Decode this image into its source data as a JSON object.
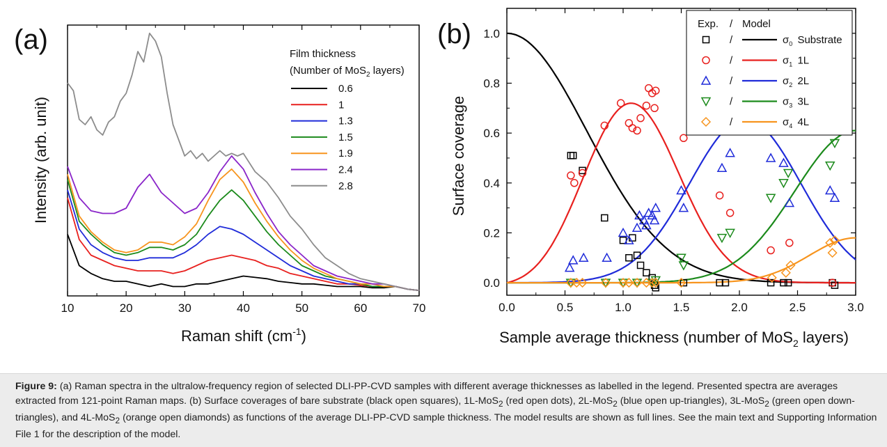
{
  "panels": {
    "a_label": "(a)",
    "b_label": "(b)"
  },
  "caption": {
    "label": "Figure 9:",
    "segments": [
      {
        "t": " (a) Raman spectra in the ultralow-frequency region of selected DLI-PP-CVD samples with different average thicknesses as labelled in the legend. Presented spectra are averages extracted from 121-point Raman maps. (b) Surface coverages of bare substrate (black open squares), 1L-MoS"
      },
      {
        "t": "2",
        "sub": true
      },
      {
        "t": " (red open dots), 2L-MoS"
      },
      {
        "t": "2",
        "sub": true
      },
      {
        "t": " (blue open up-triangles), 3L-MoS"
      },
      {
        "t": "2",
        "sub": true
      },
      {
        "t": " (green open down-triangles), and 4L-MoS"
      },
      {
        "t": "2",
        "sub": true
      },
      {
        "t": " (orange open diamonds) as functions of the average DLI-PP-CVD sample thickness. The model results are shown as full lines. See the main text and Supporting Information File 1 for the description of the model."
      }
    ]
  },
  "chart_data": [
    {
      "type": "line",
      "panel": "(a)",
      "xlabel": "Raman shift (cm",
      "xlabel_sup": "-1",
      "xlabel_tail": ")",
      "ylabel": "Intensity (arb. unit)",
      "xlim": [
        10,
        70
      ],
      "ylim": [
        0,
        1
      ],
      "xticks": [
        10,
        20,
        30,
        40,
        50,
        60,
        70
      ],
      "yticks_labeled": false,
      "grid": false,
      "legend": {
        "title_line1": "Film thickness",
        "title_line2_a": "(Number of MoS",
        "title_line2_sub": "2",
        "title_line2_b": " layers)",
        "placement": "top-right"
      },
      "series": [
        {
          "name": "0.6",
          "color": "#000000",
          "x": [
            10,
            12,
            14,
            16,
            18,
            20,
            22,
            24,
            26,
            28,
            30,
            32,
            34,
            36,
            38,
            40,
            42,
            44,
            46,
            48,
            50,
            52,
            54,
            56,
            58,
            60,
            62,
            64,
            66,
            68,
            70
          ],
          "y": [
            0.22,
            0.1,
            0.07,
            0.05,
            0.04,
            0.04,
            0.03,
            0.02,
            0.03,
            0.02,
            0.02,
            0.03,
            0.03,
            0.04,
            0.05,
            0.06,
            0.055,
            0.05,
            0.04,
            0.035,
            0.03,
            0.03,
            0.025,
            0.02,
            0.02,
            0.02,
            0.015,
            0.015,
            0.02,
            0.01,
            0.005
          ]
        },
        {
          "name": "1",
          "color": "#e8201e",
          "x": [
            10,
            12,
            14,
            16,
            18,
            20,
            22,
            24,
            26,
            28,
            30,
            32,
            34,
            36,
            38,
            40,
            42,
            44,
            46,
            48,
            50,
            52,
            54,
            56,
            58,
            60,
            62,
            64,
            66,
            68,
            70
          ],
          "y": [
            0.36,
            0.2,
            0.14,
            0.12,
            0.1,
            0.09,
            0.08,
            0.08,
            0.08,
            0.07,
            0.08,
            0.1,
            0.12,
            0.13,
            0.14,
            0.13,
            0.12,
            0.1,
            0.09,
            0.07,
            0.06,
            0.05,
            0.04,
            0.03,
            0.03,
            0.025,
            0.02,
            0.02,
            0.02,
            0.01,
            0.005
          ]
        },
        {
          "name": "1.3",
          "color": "#1f2bd9",
          "x": [
            10,
            12,
            14,
            16,
            18,
            20,
            22,
            24,
            26,
            28,
            30,
            32,
            34,
            36,
            38,
            40,
            42,
            44,
            46,
            48,
            50,
            52,
            54,
            56,
            58,
            60,
            62,
            64,
            66,
            68,
            70
          ],
          "y": [
            0.39,
            0.24,
            0.18,
            0.15,
            0.13,
            0.12,
            0.12,
            0.13,
            0.13,
            0.13,
            0.15,
            0.18,
            0.22,
            0.25,
            0.24,
            0.22,
            0.19,
            0.16,
            0.13,
            0.1,
            0.08,
            0.06,
            0.05,
            0.04,
            0.03,
            0.03,
            0.02,
            0.02,
            0.02,
            0.01,
            0.005
          ]
        },
        {
          "name": "1.5",
          "color": "#1b8a1b",
          "x": [
            10,
            12,
            14,
            16,
            18,
            20,
            22,
            24,
            26,
            28,
            30,
            32,
            34,
            36,
            38,
            40,
            42,
            44,
            46,
            48,
            50,
            52,
            54,
            56,
            58,
            60,
            62,
            64,
            66,
            68,
            70
          ],
          "y": [
            0.43,
            0.27,
            0.22,
            0.18,
            0.15,
            0.14,
            0.15,
            0.17,
            0.17,
            0.16,
            0.18,
            0.22,
            0.29,
            0.35,
            0.39,
            0.35,
            0.29,
            0.23,
            0.18,
            0.14,
            0.1,
            0.08,
            0.06,
            0.05,
            0.04,
            0.03,
            0.02,
            0.02,
            0.02,
            0.01,
            0.005
          ]
        },
        {
          "name": "1.9",
          "color": "#f7941d",
          "x": [
            10,
            12,
            14,
            16,
            18,
            20,
            22,
            24,
            26,
            28,
            30,
            32,
            34,
            36,
            38,
            40,
            42,
            44,
            46,
            48,
            50,
            52,
            54,
            56,
            58,
            60,
            62,
            64,
            66,
            68,
            70
          ],
          "y": [
            0.45,
            0.29,
            0.23,
            0.19,
            0.16,
            0.15,
            0.16,
            0.19,
            0.19,
            0.18,
            0.21,
            0.26,
            0.35,
            0.43,
            0.47,
            0.42,
            0.34,
            0.27,
            0.21,
            0.16,
            0.12,
            0.09,
            0.07,
            0.05,
            0.04,
            0.03,
            0.03,
            0.02,
            0.02,
            0.01,
            0.005
          ]
        },
        {
          "name": "2.4",
          "color": "#8a25c9",
          "x": [
            10,
            12,
            14,
            16,
            18,
            20,
            22,
            24,
            26,
            28,
            30,
            32,
            34,
            36,
            38,
            40,
            42,
            44,
            46,
            48,
            50,
            52,
            54,
            56,
            58,
            60,
            62,
            64,
            66,
            68,
            70
          ],
          "y": [
            0.48,
            0.36,
            0.31,
            0.3,
            0.3,
            0.32,
            0.4,
            0.45,
            0.38,
            0.34,
            0.3,
            0.32,
            0.38,
            0.46,
            0.52,
            0.47,
            0.38,
            0.3,
            0.23,
            0.18,
            0.14,
            0.1,
            0.08,
            0.06,
            0.05,
            0.04,
            0.03,
            0.03,
            0.02,
            0.01,
            0.005
          ]
        },
        {
          "name": "2.8",
          "color": "#8c8c8c",
          "x": [
            10,
            11,
            12,
            13,
            14,
            15,
            16,
            17,
            18,
            19,
            20,
            21,
            22,
            23,
            24,
            25,
            26,
            27,
            28,
            29,
            30,
            31,
            32,
            33,
            34,
            35,
            36,
            37,
            38,
            39,
            40,
            42,
            44,
            46,
            48,
            50,
            52,
            54,
            56,
            58,
            60,
            62,
            64,
            66,
            68,
            70
          ],
          "y": [
            0.8,
            0.77,
            0.66,
            0.64,
            0.67,
            0.62,
            0.6,
            0.65,
            0.67,
            0.73,
            0.76,
            0.83,
            0.92,
            0.88,
            0.99,
            0.96,
            0.9,
            0.76,
            0.64,
            0.58,
            0.52,
            0.54,
            0.51,
            0.53,
            0.5,
            0.52,
            0.54,
            0.52,
            0.53,
            0.52,
            0.53,
            0.46,
            0.42,
            0.36,
            0.29,
            0.24,
            0.18,
            0.13,
            0.1,
            0.07,
            0.05,
            0.04,
            0.03,
            0.02,
            0.01,
            0.005
          ]
        }
      ]
    },
    {
      "type": "scatter",
      "panel": "(b)",
      "xlabel": "Sample average thickness (number of MoS",
      "xlabel_sub": "2",
      "xlabel_tail": " layers)",
      "ylabel": "Surface coverage",
      "xlim": [
        0,
        3
      ],
      "ylim": [
        -0.05,
        1.1
      ],
      "xticks": [
        "0.0",
        "0.5",
        "1.0",
        "1.5",
        "2.0",
        "2.5",
        "3.0"
      ],
      "yticks": [
        "0.0",
        "0.2",
        "0.4",
        "0.6",
        "0.8",
        "1.0"
      ],
      "grid": false,
      "legend": {
        "header_exp": "Exp.",
        "header_sep": "/",
        "header_model": "Model",
        "placement": "top-right"
      },
      "series": [
        {
          "key": "sigma0",
          "sigma": "σ",
          "sub": "0",
          "label": "Substrate",
          "color": "#000000",
          "marker": "square",
          "model": "substrate",
          "x": [
            0.55,
            0.57,
            0.65,
            0.84,
            1.0,
            1.05,
            1.08,
            1.12,
            1.15,
            1.2,
            1.25,
            1.27,
            1.28,
            1.52,
            1.83,
            1.88,
            2.27,
            2.38,
            2.42,
            2.8,
            2.82
          ],
          "y": [
            0.51,
            0.51,
            0.45,
            0.26,
            0.17,
            0.1,
            0.18,
            0.11,
            0.07,
            0.04,
            0.02,
            -0.01,
            -0.02,
            0.0,
            0.0,
            0.0,
            0.0,
            0.0,
            0.0,
            0.0,
            -0.01
          ]
        },
        {
          "key": "sigma1",
          "sigma": "σ",
          "sub": "1",
          "label": "1L",
          "color": "#e8201e",
          "marker": "circle",
          "model": "1L",
          "x": [
            0.55,
            0.58,
            0.65,
            0.84,
            0.98,
            1.05,
            1.08,
            1.12,
            1.15,
            1.2,
            1.22,
            1.25,
            1.27,
            1.28,
            1.52,
            1.83,
            1.92,
            2.27,
            2.43,
            2.8
          ],
          "y": [
            0.43,
            0.4,
            0.44,
            0.63,
            0.72,
            0.64,
            0.62,
            0.61,
            0.66,
            0.71,
            0.78,
            0.76,
            0.7,
            0.77,
            0.58,
            0.35,
            0.28,
            0.13,
            0.16,
            0.0
          ]
        },
        {
          "key": "sigma2",
          "sigma": "σ",
          "sub": "2",
          "label": "2L",
          "color": "#1f2bd9",
          "marker": "triangle-up",
          "model": "2L",
          "x": [
            0.54,
            0.57,
            0.66,
            0.86,
            1.0,
            1.05,
            1.12,
            1.14,
            1.18,
            1.2,
            1.22,
            1.25,
            1.27,
            1.28,
            1.5,
            1.52,
            1.85,
            1.92,
            2.27,
            2.38,
            2.43,
            2.78,
            2.82
          ],
          "y": [
            0.06,
            0.09,
            0.1,
            0.1,
            0.2,
            0.17,
            0.22,
            0.27,
            0.25,
            0.23,
            0.28,
            0.27,
            0.25,
            0.3,
            0.37,
            0.3,
            0.46,
            0.52,
            0.5,
            0.48,
            0.32,
            0.37,
            0.34
          ]
        },
        {
          "key": "sigma3",
          "sigma": "σ",
          "sub": "3",
          "label": "3L",
          "color": "#1b8a1b",
          "marker": "triangle-down",
          "model": "3L",
          "x": [
            0.55,
            0.85,
            1.0,
            1.12,
            1.25,
            1.28,
            1.5,
            1.52,
            1.85,
            1.92,
            2.27,
            2.38,
            2.42,
            2.78,
            2.82
          ],
          "y": [
            0.0,
            0.0,
            0.0,
            0.0,
            0.0,
            0.01,
            0.1,
            0.07,
            0.18,
            0.2,
            0.34,
            0.4,
            0.44,
            0.47,
            0.56
          ]
        },
        {
          "key": "sigma4",
          "sigma": "σ",
          "sub": "4",
          "label": "4L",
          "color": "#f7941d",
          "marker": "diamond",
          "model": "4L",
          "x": [
            0.55,
            0.6,
            0.65,
            0.85,
            1.0,
            1.05,
            1.12,
            1.2,
            1.25,
            1.28,
            1.5,
            2.28,
            2.4,
            2.44,
            2.78,
            2.8,
            2.82
          ],
          "y": [
            0.0,
            0.0,
            0.0,
            0.0,
            0.0,
            0.0,
            0.0,
            0.0,
            0.0,
            0.0,
            0.0,
            0.02,
            0.04,
            0.07,
            0.16,
            0.12,
            0.17
          ]
        }
      ]
    }
  ]
}
